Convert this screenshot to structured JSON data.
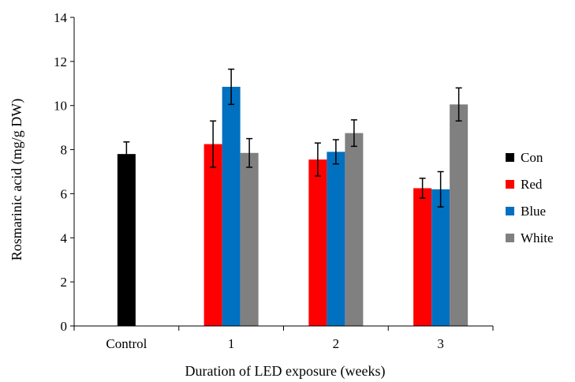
{
  "chart_data": {
    "type": "bar",
    "title": "",
    "xlabel": "Duration of LED exposure (weeks)",
    "ylabel": "Rosmarinic acid (mg/g DW)",
    "ylim": [
      0,
      14
    ],
    "yticks": [
      "0",
      "2",
      "4",
      "6",
      "8",
      "10",
      "12",
      "14"
    ],
    "categories": [
      "Control",
      "1",
      "2",
      "3"
    ],
    "grid": false,
    "legend_position": "right",
    "series": [
      {
        "name": "Con",
        "color": "#000000",
        "values": [
          7.8,
          null,
          null,
          null
        ],
        "errors": [
          0.55,
          null,
          null,
          null
        ]
      },
      {
        "name": "Red",
        "color": "#ff0000",
        "values": [
          null,
          8.25,
          7.55,
          6.25
        ],
        "errors": [
          null,
          1.05,
          0.75,
          0.45
        ]
      },
      {
        "name": "Blue",
        "color": "#0070c0",
        "values": [
          null,
          10.85,
          7.9,
          6.2
        ],
        "errors": [
          null,
          0.8,
          0.55,
          0.8
        ]
      },
      {
        "name": "White",
        "color": "#808080",
        "values": [
          null,
          7.85,
          8.75,
          10.05
        ],
        "errors": [
          null,
          0.65,
          0.6,
          0.75
        ]
      }
    ]
  }
}
